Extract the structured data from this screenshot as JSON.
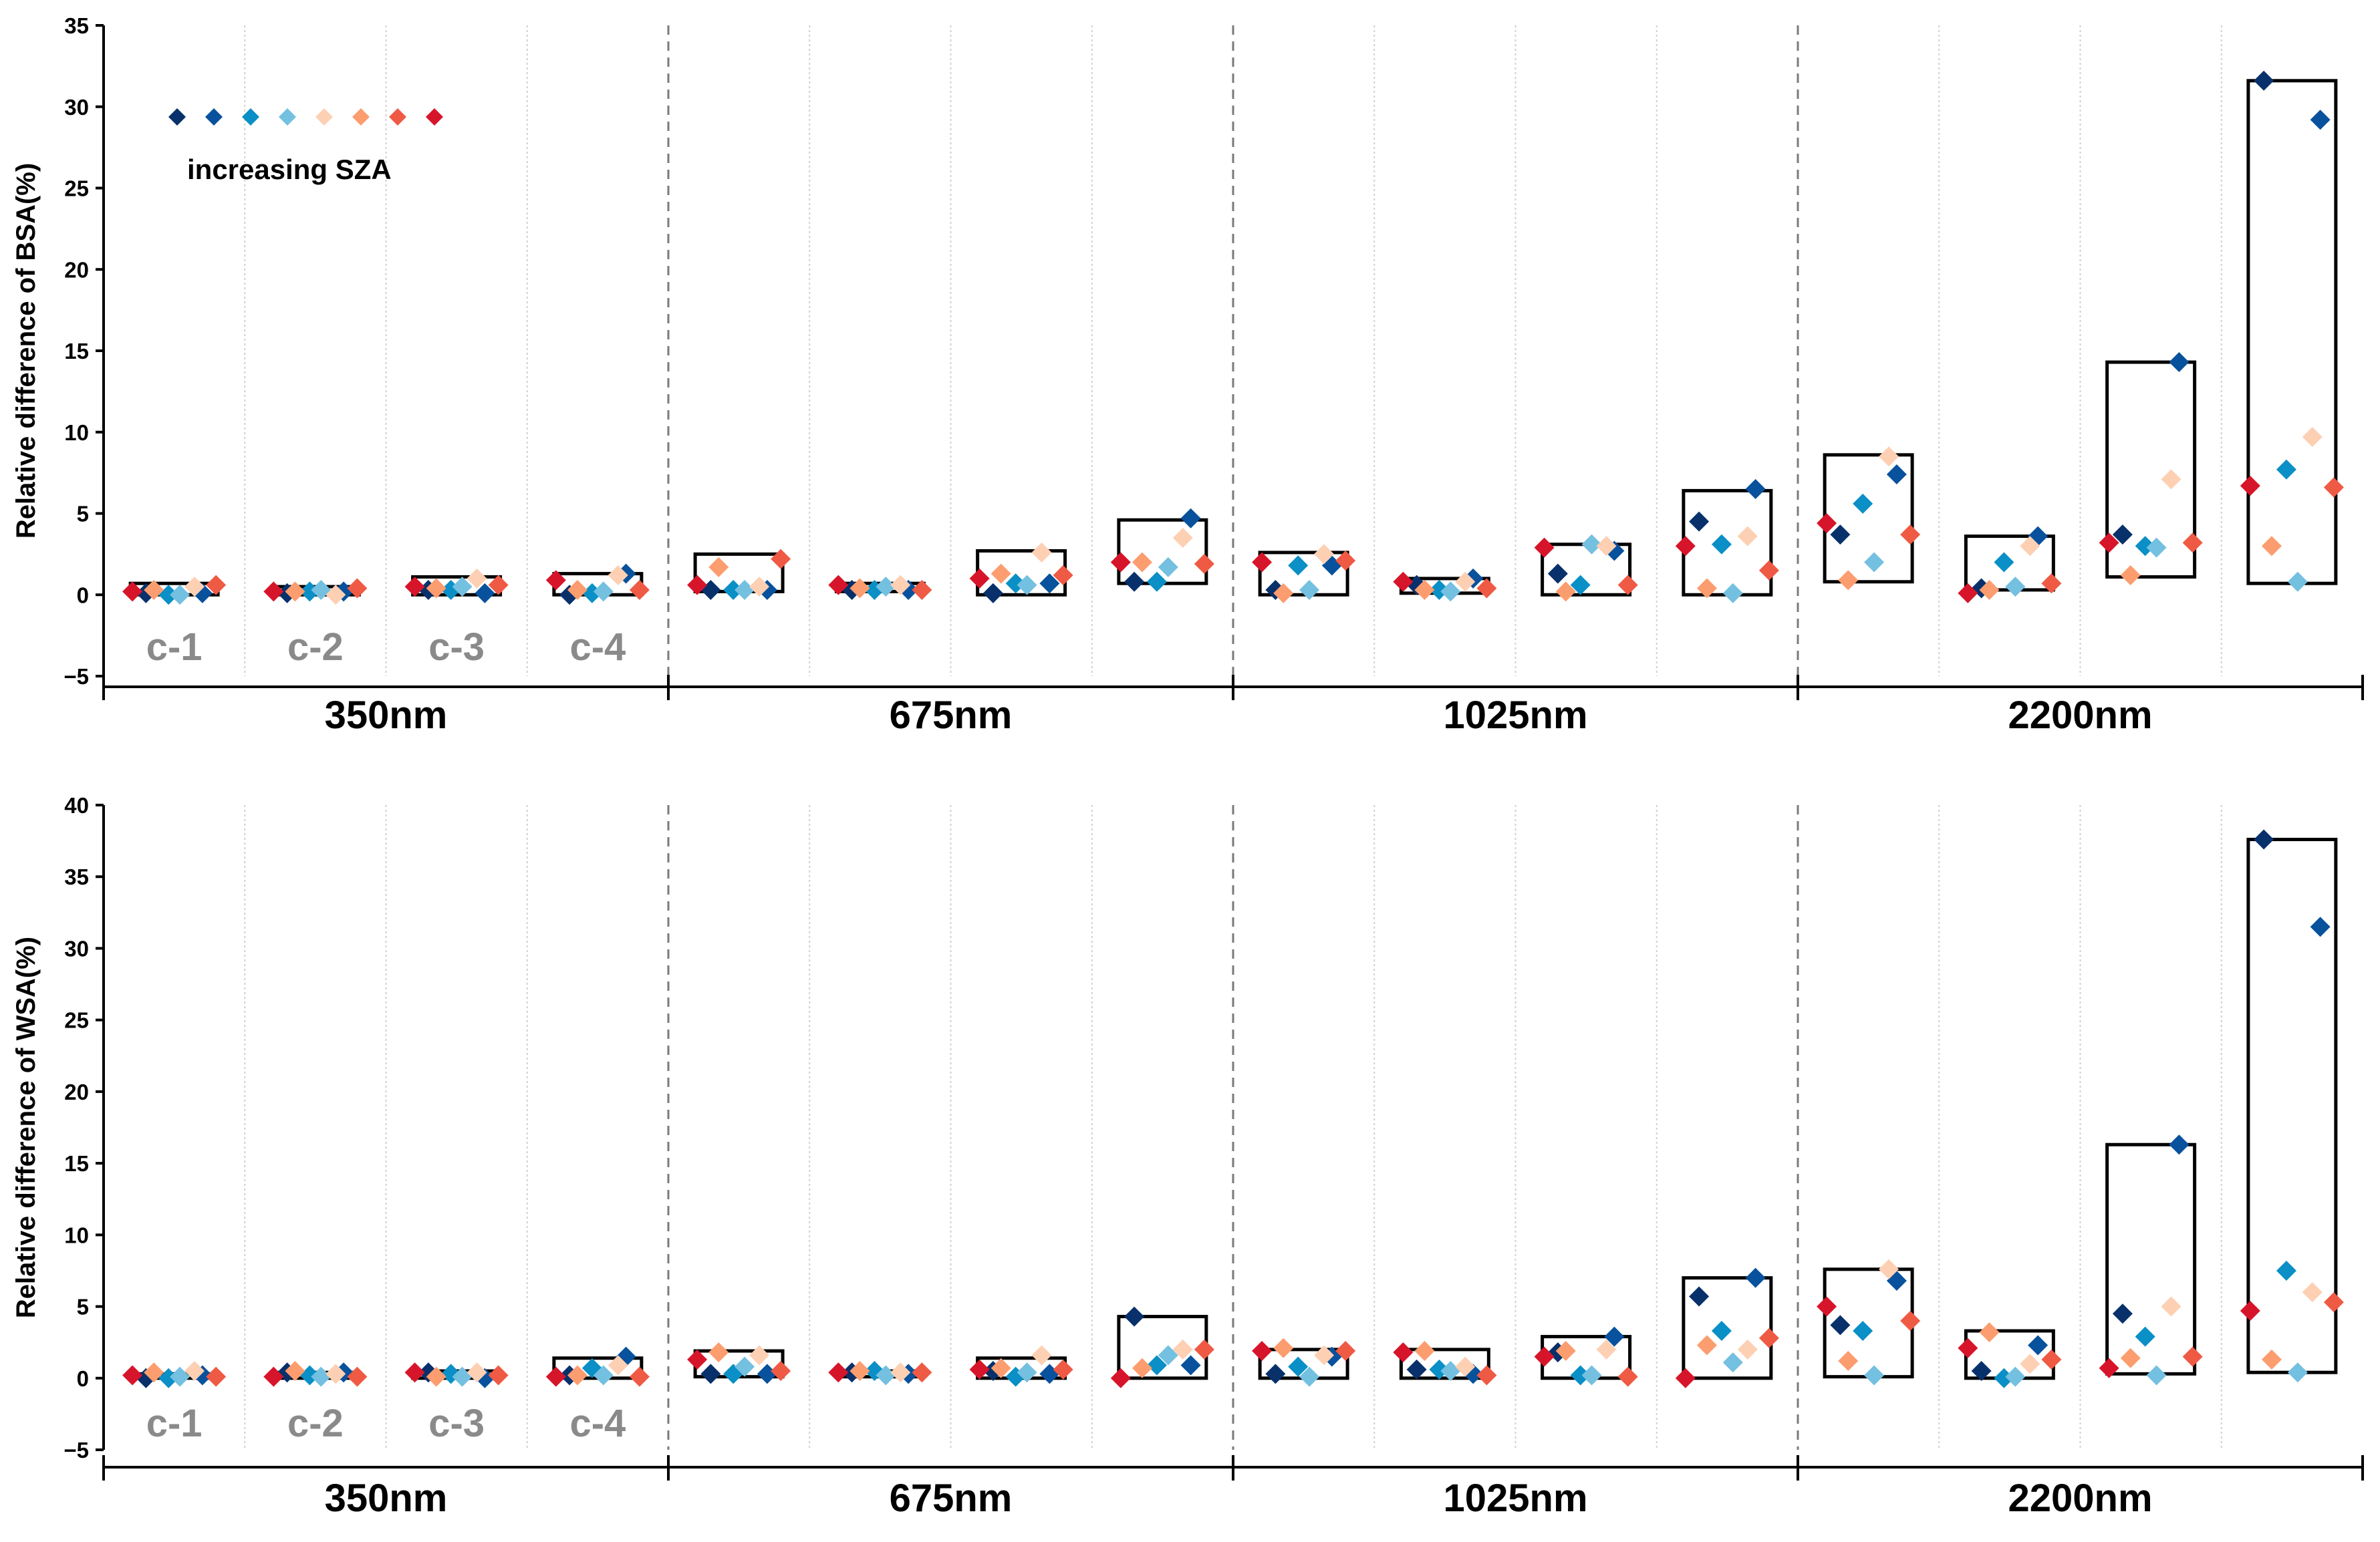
{
  "colors": {
    "sza": [
      "#08306b",
      "#08519c",
      "#0a8fc6",
      "#74c0e0",
      "#fdd0b4",
      "#fc9d6f",
      "#ef5a44",
      "#d7152a"
    ],
    "axis": "#000000",
    "case_label": "#8a8a8a",
    "box": "#000000"
  },
  "legend": {
    "text": "increasing SZA"
  },
  "case_labels": [
    "c-1",
    "c-2",
    "c-3",
    "c-4"
  ],
  "wavelength_labels": [
    "350nm",
    "675nm",
    "1025nm",
    "2200nm"
  ],
  "chart_data": [
    {
      "type": "scatter",
      "title": "",
      "ylabel": "Relative difference of BSA(%)",
      "xlabel": "",
      "ylim": [
        -5,
        35
      ],
      "yticks": [
        -5,
        0,
        5,
        10,
        15,
        20,
        25,
        30,
        35
      ],
      "groups": [
        "350nm c-1",
        "350nm c-2",
        "350nm c-3",
        "350nm c-4",
        "675nm c-1",
        "675nm c-2",
        "675nm c-3",
        "675nm c-4",
        "1025nm c-1",
        "1025nm c-2",
        "1025nm c-3",
        "1025nm c-4",
        "2200nm c-1",
        "2200nm c-2",
        "2200nm c-3",
        "2200nm c-4"
      ],
      "series_note": "each group holds 8 values ordered by increasing SZA",
      "values": [
        [
          0.1,
          0.1,
          0.0,
          0.0,
          0.5,
          0.3,
          0.6,
          0.2
        ],
        [
          0.1,
          0.2,
          0.2,
          0.3,
          0.0,
          0.2,
          0.4,
          0.2
        ],
        [
          0.3,
          0.1,
          0.3,
          0.5,
          1.0,
          0.4,
          0.6,
          0.5
        ],
        [
          0.0,
          1.3,
          0.1,
          0.2,
          1.2,
          0.3,
          0.3,
          0.9
        ],
        [
          0.3,
          0.3,
          0.3,
          0.3,
          0.5,
          1.7,
          2.2,
          0.6
        ],
        [
          0.3,
          0.3,
          0.3,
          0.5,
          0.6,
          0.4,
          0.3,
          0.6
        ],
        [
          0.1,
          0.7,
          0.7,
          0.6,
          2.6,
          1.3,
          1.2,
          1.0
        ],
        [
          0.8,
          4.7,
          0.8,
          1.7,
          3.5,
          2.0,
          1.9,
          2.0
        ],
        [
          0.3,
          1.8,
          1.8,
          0.3,
          2.5,
          0.1,
          2.1,
          2.0
        ],
        [
          0.6,
          1.0,
          0.3,
          0.2,
          0.8,
          0.3,
          0.4,
          0.8
        ],
        [
          1.3,
          2.7,
          0.6,
          3.1,
          3.0,
          0.2,
          0.6,
          2.9
        ],
        [
          4.5,
          6.5,
          3.1,
          0.1,
          3.6,
          0.4,
          1.5,
          3.0
        ],
        [
          3.7,
          7.4,
          5.6,
          2.0,
          8.5,
          0.9,
          3.7,
          4.4
        ],
        [
          0.4,
          3.6,
          2.0,
          0.5,
          3.0,
          0.3,
          0.7,
          0.1
        ],
        [
          3.7,
          14.3,
          3.0,
          2.9,
          7.1,
          1.2,
          3.2,
          3.2
        ],
        [
          31.6,
          29.2,
          7.7,
          0.8,
          9.7,
          3.0,
          6.6,
          6.7
        ]
      ],
      "boxes": [
        [
          0.0,
          0.7
        ],
        [
          0.0,
          0.5
        ],
        [
          0.0,
          1.1
        ],
        [
          0.0,
          1.3
        ],
        [
          0.2,
          2.5
        ],
        [
          0.2,
          0.7
        ],
        [
          0.0,
          2.7
        ],
        [
          0.7,
          4.6
        ],
        [
          0.0,
          2.6
        ],
        [
          0.1,
          1.0
        ],
        [
          0.0,
          3.1
        ],
        [
          0.0,
          6.4
        ],
        [
          0.8,
          8.6
        ],
        [
          0.3,
          3.6
        ],
        [
          1.1,
          14.3
        ],
        [
          0.7,
          31.6
        ]
      ],
      "case_labels": [
        "c-1",
        "c-2",
        "c-3",
        "c-4"
      ],
      "wavelengths": [
        "350nm",
        "675nm",
        "1025nm",
        "2200nm"
      ],
      "legend": "increasing SZA"
    },
    {
      "type": "scatter",
      "title": "",
      "ylabel": "Relative difference of WSA(%)",
      "xlabel": "",
      "ylim": [
        -5,
        40
      ],
      "yticks": [
        -5,
        0,
        5,
        10,
        15,
        20,
        25,
        30,
        35,
        40
      ],
      "groups": [
        "350nm c-1",
        "350nm c-2",
        "350nm c-3",
        "350nm c-4",
        "675nm c-1",
        "675nm c-2",
        "675nm c-3",
        "675nm c-4",
        "1025nm c-1",
        "1025nm c-2",
        "1025nm c-3",
        "1025nm c-4",
        "2200nm c-1",
        "2200nm c-2",
        "2200nm c-3",
        "2200nm c-4"
      ],
      "series_note": "each group holds 8 values ordered by increasing SZA",
      "values": [
        [
          0.0,
          0.2,
          0.0,
          0.1,
          0.5,
          0.4,
          0.1,
          0.2
        ],
        [
          0.4,
          0.4,
          0.2,
          0.1,
          0.3,
          0.5,
          0.1,
          0.1
        ],
        [
          0.4,
          0.0,
          0.3,
          0.1,
          0.4,
          0.1,
          0.2,
          0.4
        ],
        [
          0.2,
          1.5,
          0.7,
          0.2,
          0.9,
          0.2,
          0.1,
          0.1
        ],
        [
          0.3,
          0.3,
          0.3,
          0.8,
          1.6,
          1.8,
          0.5,
          1.3
        ],
        [
          0.4,
          0.3,
          0.5,
          0.2,
          0.4,
          0.5,
          0.4,
          0.4
        ],
        [
          0.5,
          0.3,
          0.1,
          0.4,
          1.6,
          0.7,
          0.6,
          0.6
        ],
        [
          4.3,
          0.9,
          0.9,
          1.6,
          2.0,
          0.7,
          2.0,
          0.0
        ],
        [
          0.3,
          1.5,
          0.8,
          0.1,
          1.6,
          2.1,
          1.9,
          1.9
        ],
        [
          0.6,
          0.3,
          0.6,
          0.5,
          0.8,
          1.9,
          0.2,
          1.8
        ],
        [
          1.8,
          2.9,
          0.2,
          0.2,
          2.0,
          1.9,
          0.1,
          1.5
        ],
        [
          5.7,
          7.0,
          3.3,
          1.1,
          2.0,
          2.3,
          2.8,
          0.0
        ],
        [
          3.7,
          6.8,
          3.3,
          0.2,
          7.6,
          1.2,
          4.0,
          5.0
        ],
        [
          0.5,
          2.3,
          0.0,
          0.1,
          1.0,
          3.2,
          1.3,
          2.1
        ],
        [
          4.5,
          16.3,
          2.9,
          0.2,
          5.0,
          1.4,
          1.5,
          0.7
        ],
        [
          37.6,
          31.5,
          7.5,
          0.4,
          6.0,
          1.3,
          5.3,
          4.7
        ]
      ],
      "boxes": [
        [
          0.0,
          0.3
        ],
        [
          0.0,
          0.4
        ],
        [
          0.0,
          0.5
        ],
        [
          0.0,
          1.4
        ],
        [
          0.1,
          1.9
        ],
        [
          0.1,
          0.5
        ],
        [
          0.0,
          1.4
        ],
        [
          0.0,
          4.3
        ],
        [
          0.0,
          2.0
        ],
        [
          0.0,
          2.0
        ],
        [
          0.0,
          2.9
        ],
        [
          0.0,
          7.0
        ],
        [
          0.1,
          7.6
        ],
        [
          0.0,
          3.3
        ],
        [
          0.3,
          16.3
        ],
        [
          0.4,
          37.6
        ]
      ],
      "case_labels": [
        "c-1",
        "c-2",
        "c-3",
        "c-4"
      ],
      "wavelengths": [
        "350nm",
        "675nm",
        "1025nm",
        "2200nm"
      ]
    }
  ]
}
